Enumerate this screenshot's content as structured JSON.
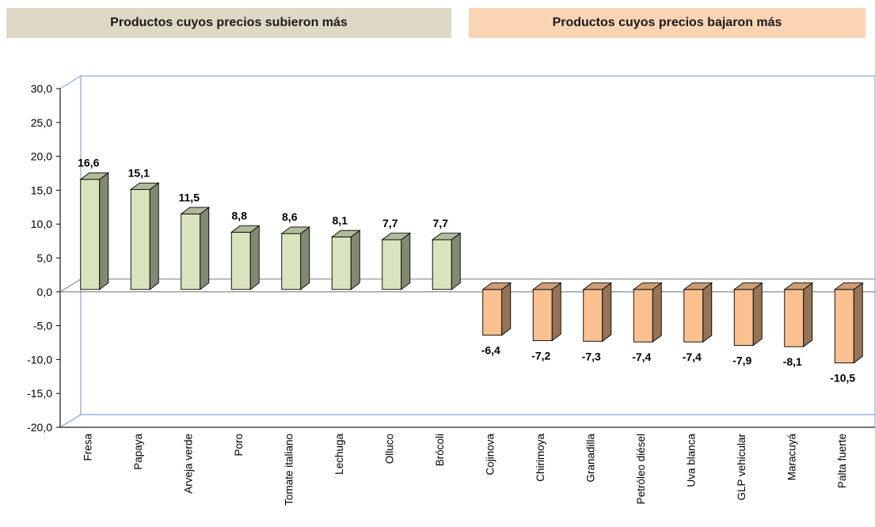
{
  "header": {
    "left_title": "Productos cuyos precios subieron más",
    "right_title": "Productos cuyos precios bajaron más",
    "left_color": "#ddd9c4",
    "right_color": "#fbd4b4"
  },
  "chart_data": {
    "type": "bar",
    "style": "3d-column",
    "categories": [
      "Fresa",
      "Papaya",
      "Arveja verde",
      "Poro",
      "Tomate italiano",
      "Lechuga",
      "Olluco",
      "Brócoli",
      "Cojinova",
      "Chirimoya",
      "Granadilla",
      "Petróleo diésel",
      "Uva blanca",
      "GLP vehicular",
      "Maracuyá",
      "Palta fuerte"
    ],
    "values": [
      16.6,
      15.1,
      11.5,
      8.8,
      8.6,
      8.1,
      7.7,
      7.7,
      -6.4,
      -7.2,
      -7.3,
      -7.4,
      -7.4,
      -7.9,
      -8.1,
      -10.5
    ],
    "value_labels": [
      "16,6",
      "15,1",
      "11,5",
      "8,8",
      "8,6",
      "8,1",
      "7,7",
      "7,7",
      "-6,4",
      "-7,2",
      "-7,3",
      "-7,4",
      "-7,4",
      "-7,9",
      "-8,1",
      "-10,5"
    ],
    "ylim": [
      -20,
      30
    ],
    "yticks": [
      30,
      25,
      20,
      15,
      10,
      5,
      0,
      -5,
      -10,
      -15,
      -20
    ],
    "ytick_labels": [
      "30,0",
      "25,0",
      "20,0",
      "15,0",
      "10,0",
      "5,0",
      "0,0",
      "-5,0",
      "-10,0",
      "-15,0",
      "-20,0"
    ],
    "positive_color": "#d7e4bd",
    "negative_color": "#fac090",
    "title": "",
    "xlabel": "",
    "ylabel": "",
    "grid": false,
    "legend": "none"
  }
}
